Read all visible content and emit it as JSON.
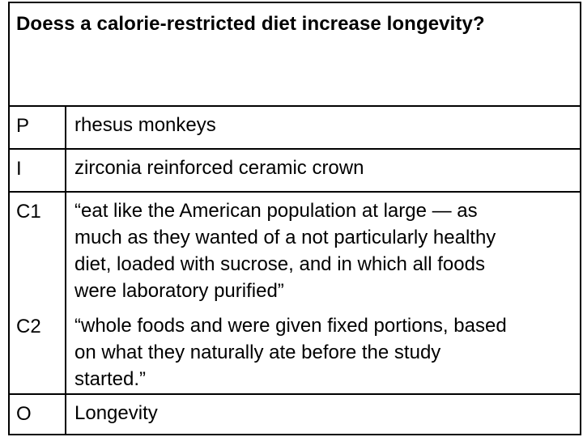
{
  "question": "Doess a calorie-restricted diet increase longevity?",
  "rows": [
    {
      "label": "P",
      "lines": [
        "rhesus monkeys"
      ]
    },
    {
      "label": "I",
      "lines": [
        "zirconia reinforced ceramic crown"
      ]
    },
    {
      "label": "C1",
      "lines": [
        "“eat like the American population at large — as",
        "much as they wanted of a not particularly healthy",
        "diet, loaded with sucrose, and in which all foods",
        "were laboratory purified”"
      ]
    },
    {
      "label": "C2",
      "lines": [
        "“whole foods and were given fixed portions, based",
        "on what they naturally ate before the study",
        "started.”"
      ]
    },
    {
      "label": "O",
      "lines": [
        "Longevity"
      ]
    }
  ]
}
